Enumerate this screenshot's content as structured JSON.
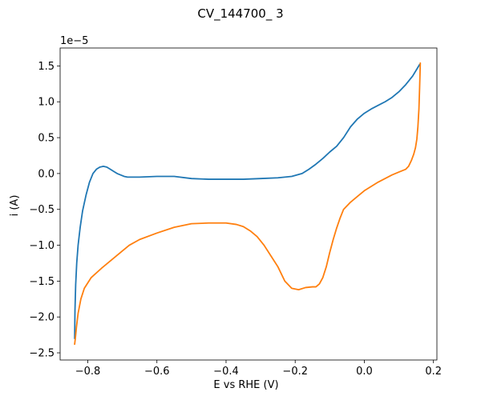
{
  "chart_data": {
    "type": "line",
    "title": "CV_144700_ 3",
    "xlabel": "E vs RHE (V)",
    "ylabel": "i (A)",
    "y_offset_label": "1e−5",
    "y_scale_exponent": -5,
    "xlim": [
      -0.88,
      0.21
    ],
    "ylim": [
      -2.6,
      1.75
    ],
    "grid": false,
    "legend": "none",
    "x_ticks": [
      -0.8,
      -0.6,
      -0.4,
      -0.2,
      0.0,
      0.2
    ],
    "x_tick_labels": [
      "−0.8",
      "−0.6",
      "−0.4",
      "−0.2",
      "0.0",
      "0.2"
    ],
    "y_ticks": [
      -2.5,
      -2.0,
      -1.5,
      -1.0,
      -0.5,
      0.0,
      0.5,
      1.0,
      1.5
    ],
    "y_tick_labels": [
      "−2.5",
      "−2.0",
      "−1.5",
      "−1.0",
      "−0.5",
      "0.0",
      "0.5",
      "1.0",
      "1.5"
    ],
    "series": [
      {
        "color": "#1f77b4",
        "x": [
          -0.838,
          -0.837,
          -0.835,
          -0.832,
          -0.828,
          -0.822,
          -0.815,
          -0.805,
          -0.795,
          -0.785,
          -0.775,
          -0.765,
          -0.755,
          -0.745,
          -0.735,
          -0.725,
          -0.715,
          -0.705,
          -0.695,
          -0.685,
          -0.67,
          -0.65,
          -0.6,
          -0.55,
          -0.5,
          -0.45,
          -0.4,
          -0.35,
          -0.3,
          -0.25,
          -0.21,
          -0.18,
          -0.16,
          -0.14,
          -0.12,
          -0.1,
          -0.08,
          -0.06,
          -0.04,
          -0.02,
          0.0,
          0.02,
          0.04,
          0.06,
          0.08,
          0.1,
          0.12,
          0.14,
          0.16
        ],
        "y": [
          -2.3,
          -1.9,
          -1.55,
          -1.25,
          -1.0,
          -0.75,
          -0.52,
          -0.3,
          -0.12,
          -0.0,
          0.06,
          0.09,
          0.1,
          0.09,
          0.06,
          0.03,
          0.0,
          -0.02,
          -0.04,
          -0.05,
          -0.05,
          -0.05,
          -0.04,
          -0.04,
          -0.07,
          -0.08,
          -0.08,
          -0.08,
          -0.07,
          -0.06,
          -0.04,
          0.0,
          0.06,
          0.13,
          0.21,
          0.3,
          0.38,
          0.5,
          0.65,
          0.76,
          0.84,
          0.9,
          0.95,
          1.0,
          1.06,
          1.14,
          1.24,
          1.36,
          1.52
        ]
      },
      {
        "color": "#ff7f0e",
        "x": [
          0.162,
          0.16,
          0.158,
          0.155,
          0.152,
          0.148,
          0.143,
          0.136,
          0.128,
          0.12,
          0.11,
          0.1,
          0.08,
          0.06,
          0.04,
          0.02,
          0.0,
          -0.02,
          -0.04,
          -0.06,
          -0.07,
          -0.08,
          -0.09,
          -0.1,
          -0.11,
          -0.12,
          -0.13,
          -0.14,
          -0.15,
          -0.17,
          -0.19,
          -0.21,
          -0.23,
          -0.25,
          -0.27,
          -0.29,
          -0.31,
          -0.33,
          -0.35,
          -0.37,
          -0.4,
          -0.45,
          -0.5,
          -0.55,
          -0.6,
          -0.65,
          -0.68,
          -0.7,
          -0.73,
          -0.76,
          -0.79,
          -0.81,
          -0.82,
          -0.828,
          -0.833,
          -0.836,
          -0.838
        ],
        "y": [
          1.54,
          1.2,
          0.9,
          0.65,
          0.48,
          0.36,
          0.27,
          0.18,
          0.1,
          0.06,
          0.04,
          0.02,
          -0.02,
          -0.07,
          -0.12,
          -0.18,
          -0.24,
          -0.32,
          -0.4,
          -0.5,
          -0.62,
          -0.76,
          -0.92,
          -1.1,
          -1.3,
          -1.45,
          -1.54,
          -1.58,
          -1.58,
          -1.59,
          -1.62,
          -1.6,
          -1.5,
          -1.3,
          -1.15,
          -1.0,
          -0.88,
          -0.8,
          -0.74,
          -0.71,
          -0.69,
          -0.69,
          -0.7,
          -0.75,
          -0.83,
          -0.92,
          -1.0,
          -1.08,
          -1.2,
          -1.32,
          -1.45,
          -1.6,
          -1.75,
          -1.95,
          -2.15,
          -2.3,
          -2.38
        ]
      }
    ]
  }
}
